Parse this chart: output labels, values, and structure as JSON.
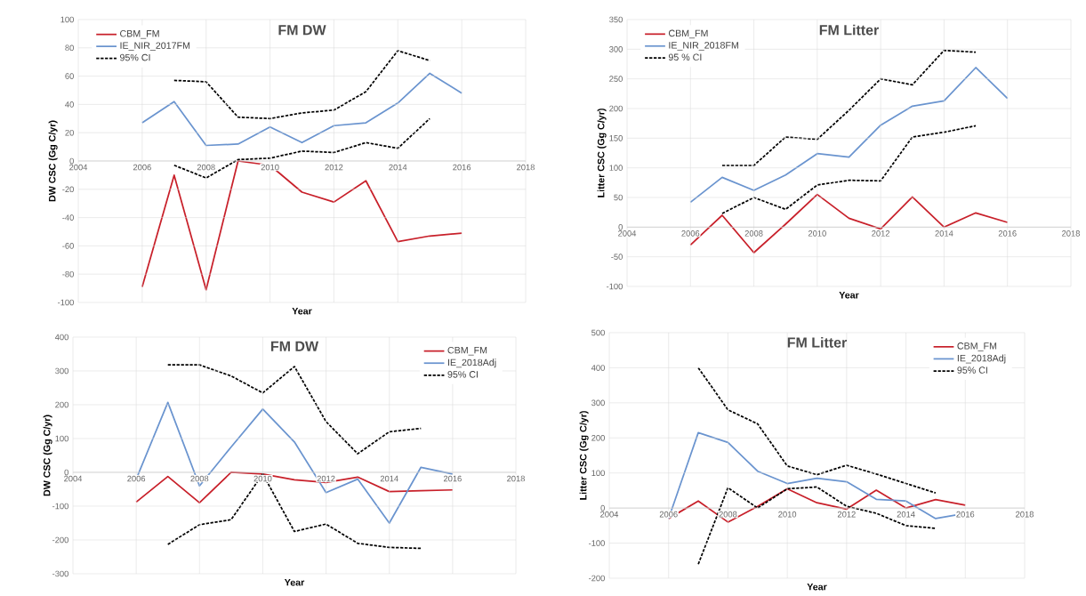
{
  "chart_data": [
    {
      "type": "line",
      "title": "FM DW",
      "xlabel": "Year",
      "ylabel": "DW CSC (Gg C/yr)",
      "x": [
        2006,
        2007,
        2008,
        2009,
        2010,
        2011,
        2012,
        2013,
        2014,
        2015,
        2016
      ],
      "xlim": [
        2004,
        2018
      ],
      "xticks": [
        2004,
        2006,
        2008,
        2010,
        2012,
        2014,
        2016,
        2018
      ],
      "ylim": [
        -100,
        100
      ],
      "yticks": [
        -100,
        -80,
        -60,
        -40,
        -20,
        0,
        20,
        40,
        60,
        80,
        100
      ],
      "grid": true,
      "legend": "top left",
      "series": [
        {
          "name": "CBM_FM",
          "color": "#c8202a",
          "values": [
            -89,
            -10,
            -91,
            0,
            -3,
            -22,
            -29,
            -14,
            -57,
            -53,
            -51
          ]
        },
        {
          "name": "IE_NIR_2017FM",
          "color": "#6a94cf",
          "values": [
            27,
            42,
            11,
            12,
            24,
            13,
            25,
            27,
            41,
            62,
            48
          ]
        },
        {
          "name": "95% CI",
          "color": "#000000",
          "line_style": "dashed",
          "x": [
            2007,
            2008,
            2009,
            2010,
            2011,
            2012,
            2013,
            2014,
            2015
          ],
          "values": [
            57,
            56,
            31,
            30,
            34,
            36,
            49,
            78,
            71
          ]
        },
        {
          "color": "#000000",
          "line_style": "dashed",
          "x": [
            2007,
            2008,
            2009,
            2010,
            2011,
            2012,
            2013,
            2014,
            2015
          ],
          "values": [
            -3,
            -12,
            1,
            2,
            7,
            6,
            13,
            9,
            30
          ]
        }
      ]
    },
    {
      "type": "line",
      "title": "FM Litter",
      "xlabel": "Year",
      "ylabel": "Litter CSC (Gg C/yr)",
      "x": [
        2006,
        2007,
        2008,
        2009,
        2010,
        2011,
        2012,
        2013,
        2014,
        2015,
        2016
      ],
      "xlim": [
        2004,
        2018
      ],
      "xticks": [
        2004,
        2006,
        2008,
        2010,
        2012,
        2014,
        2016,
        2018
      ],
      "ylim": [
        -100,
        350
      ],
      "yticks": [
        -100,
        -50,
        0,
        50,
        100,
        150,
        200,
        250,
        300,
        350
      ],
      "grid": true,
      "legend": "top left",
      "series": [
        {
          "name": "CBM_FM",
          "color": "#c8202a",
          "values": [
            -30,
            20,
            -43,
            5,
            55,
            15,
            -3,
            51,
            0,
            24,
            8
          ]
        },
        {
          "name": "IE_NIR_2018FM",
          "color": "#6a94cf",
          "values": [
            42,
            84,
            62,
            88,
            124,
            118,
            172,
            204,
            213,
            269,
            217
          ]
        },
        {
          "name": "95 % CI",
          "color": "#000000",
          "line_style": "dashed",
          "x": [
            2007,
            2008,
            2009,
            2010,
            2011,
            2012,
            2013,
            2014,
            2015
          ],
          "values": [
            104,
            104,
            152,
            148,
            197,
            250,
            240,
            298,
            295
          ]
        },
        {
          "color": "#000000",
          "line_style": "dashed",
          "x": [
            2007,
            2008,
            2009,
            2010,
            2011,
            2012,
            2013,
            2014,
            2015
          ],
          "values": [
            23,
            50,
            30,
            71,
            79,
            78,
            152,
            160,
            171
          ]
        }
      ]
    },
    {
      "type": "line",
      "title": "FM DW",
      "xlabel": "Year",
      "ylabel": "DW CSC (Gg C/yr)",
      "x": [
        2006,
        2007,
        2008,
        2009,
        2010,
        2011,
        2012,
        2013,
        2014,
        2015,
        2016
      ],
      "xlim": [
        2004,
        2018
      ],
      "xticks": [
        2004,
        2006,
        2008,
        2010,
        2012,
        2014,
        2016,
        2018
      ],
      "ylim": [
        -300,
        400
      ],
      "yticks": [
        -300,
        -200,
        -100,
        0,
        100,
        200,
        300,
        400
      ],
      "grid": true,
      "legend": "top right",
      "series": [
        {
          "name": "CBM_FM",
          "color": "#c8202a",
          "values": [
            -88,
            -12,
            -90,
            0,
            -5,
            -22,
            -30,
            -14,
            -57,
            -54,
            -52
          ]
        },
        {
          "name": "IE_2018Adj",
          "color": "#6a94cf",
          "values": [
            -20,
            207,
            -40,
            75,
            187,
            90,
            -60,
            -20,
            -150,
            15,
            -5
          ]
        },
        {
          "name": "95% CI",
          "color": "#000000",
          "line_style": "dashed",
          "x": [
            2007,
            2008,
            2009,
            2010,
            2011,
            2012,
            2013,
            2014,
            2015
          ],
          "values": [
            318,
            318,
            285,
            235,
            313,
            150,
            55,
            120,
            130
          ]
        },
        {
          "color": "#000000",
          "line_style": "dashed",
          "x": [
            2007,
            2008,
            2009,
            2010,
            2011,
            2012,
            2013,
            2014,
            2015
          ],
          "values": [
            -213,
            -155,
            -140,
            -5,
            -175,
            -153,
            -210,
            -222,
            -225
          ]
        }
      ]
    },
    {
      "type": "line",
      "title": "FM Litter",
      "xlabel": "Year",
      "ylabel": "Litter CSC (Gg C/yr)",
      "x": [
        2006,
        2007,
        2008,
        2009,
        2010,
        2011,
        2012,
        2013,
        2014,
        2015,
        2016
      ],
      "xlim": [
        2004,
        2018
      ],
      "xticks": [
        2004,
        2006,
        2008,
        2010,
        2012,
        2014,
        2016,
        2018
      ],
      "ylim": [
        -200,
        500
      ],
      "yticks": [
        -200,
        -100,
        0,
        100,
        200,
        300,
        400,
        500
      ],
      "grid": true,
      "legend": "top right",
      "series": [
        {
          "name": "CBM_FM",
          "color": "#c8202a",
          "values": [
            -30,
            20,
            -40,
            5,
            55,
            15,
            -3,
            51,
            0,
            24,
            8
          ]
        },
        {
          "name": "IE_2018Adj",
          "color": "#6a94cf",
          "values": [
            -30,
            215,
            187,
            105,
            70,
            85,
            75,
            25,
            20,
            -30,
            -15
          ]
        },
        {
          "name": "95% CI",
          "color": "#000000",
          "line_style": "dashed",
          "x": [
            2007,
            2008,
            2009,
            2010,
            2011,
            2012,
            2013,
            2014,
            2015
          ],
          "values": [
            400,
            280,
            240,
            120,
            95,
            122,
            97,
            70,
            43
          ]
        },
        {
          "color": "#000000",
          "line_style": "dashed",
          "x": [
            2007,
            2008,
            2009,
            2010,
            2011,
            2012,
            2013,
            2014,
            2015
          ],
          "values": [
            -160,
            58,
            0,
            55,
            60,
            5,
            -15,
            -50,
            -58
          ]
        }
      ]
    }
  ]
}
